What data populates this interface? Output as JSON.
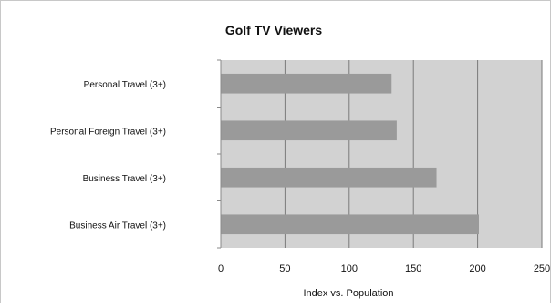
{
  "chart_data": {
    "type": "bar",
    "orientation": "horizontal",
    "title": "Golf TV Viewers",
    "xlabel": "Index vs. Population",
    "ylabel": "",
    "categories": [
      "Personal Travel (3+)",
      "Personal Foreign Travel (3+)",
      "Business Travel (3+)",
      "Business Air Travel (3+)"
    ],
    "values": [
      133,
      137,
      168,
      201
    ],
    "xlim": [
      0,
      250
    ],
    "xticks": [
      "0",
      "50",
      "100",
      "150",
      "200",
      "250"
    ],
    "grid": true,
    "legend": "none",
    "colors": {
      "plot_background": "#d2d2d2",
      "bar": "#9a9a9a",
      "gridline": "#7a7a7a",
      "border": "#c8c8c8"
    }
  }
}
